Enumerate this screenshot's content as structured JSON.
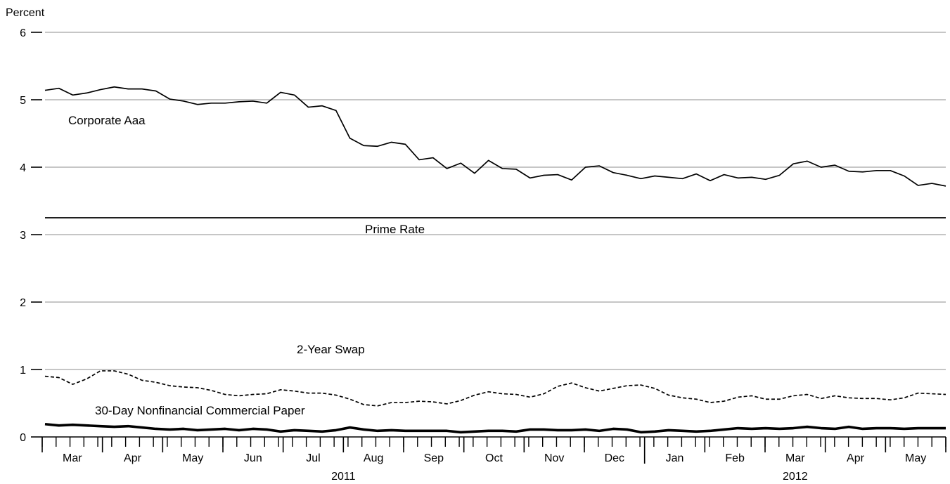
{
  "chart_data": {
    "type": "line",
    "ylabel": "Percent",
    "ylim": [
      0,
      6
    ],
    "yticks": [
      0,
      1,
      2,
      3,
      4,
      5,
      6
    ],
    "grid": true,
    "months": [
      "Mar",
      "Apr",
      "May",
      "Jun",
      "Jul",
      "Aug",
      "Sep",
      "Oct",
      "Nov",
      "Dec",
      "Jan",
      "Feb",
      "Mar",
      "Apr",
      "May"
    ],
    "years": [
      {
        "label": "2011",
        "first_month": 0,
        "last_month": 9
      },
      {
        "label": "2012",
        "first_month": 10,
        "last_month": 14
      }
    ],
    "series": [
      {
        "name": "Corporate Aaa",
        "style": "solid",
        "color": "#000000",
        "values": [
          5.14,
          5.17,
          5.07,
          5.1,
          5.15,
          5.19,
          5.16,
          5.16,
          5.13,
          5.01,
          4.98,
          4.93,
          4.95,
          4.95,
          4.97,
          4.98,
          4.95,
          5.11,
          5.07,
          4.89,
          4.91,
          4.84,
          4.43,
          4.32,
          4.31,
          4.37,
          4.34,
          4.11,
          4.14,
          3.98,
          4.06,
          3.91,
          4.1,
          3.98,
          3.97,
          3.84,
          3.88,
          3.89,
          3.81,
          4.0,
          4.02,
          3.92,
          3.88,
          3.83,
          3.87,
          3.85,
          3.83,
          3.9,
          3.8,
          3.89,
          3.84,
          3.85,
          3.82,
          3.88,
          4.05,
          4.09,
          4.0,
          4.03,
          3.94,
          3.93,
          3.95,
          3.95,
          3.87,
          3.73,
          3.76,
          3.72
        ]
      },
      {
        "name": "Prime Rate",
        "style": "solid",
        "color": "#000000",
        "values": [
          3.25,
          3.25
        ]
      },
      {
        "name": "2-Year Swap",
        "style": "dashed",
        "color": "#000000",
        "values": [
          0.9,
          0.88,
          0.78,
          0.86,
          0.98,
          0.98,
          0.93,
          0.84,
          0.81,
          0.76,
          0.74,
          0.73,
          0.69,
          0.63,
          0.61,
          0.63,
          0.64,
          0.7,
          0.68,
          0.65,
          0.65,
          0.62,
          0.56,
          0.48,
          0.46,
          0.51,
          0.51,
          0.53,
          0.52,
          0.49,
          0.54,
          0.62,
          0.67,
          0.64,
          0.63,
          0.59,
          0.64,
          0.75,
          0.8,
          0.73,
          0.68,
          0.72,
          0.76,
          0.77,
          0.72,
          0.62,
          0.58,
          0.56,
          0.51,
          0.53,
          0.59,
          0.61,
          0.56,
          0.56,
          0.61,
          0.63,
          0.57,
          0.61,
          0.58,
          0.57,
          0.57,
          0.55,
          0.58,
          0.65,
          0.64,
          0.63
        ]
      },
      {
        "name": "30-Day Nonfinancial Commercial Paper",
        "style": "bold",
        "color": "#000000",
        "values": [
          0.19,
          0.17,
          0.18,
          0.17,
          0.16,
          0.15,
          0.16,
          0.14,
          0.12,
          0.11,
          0.12,
          0.1,
          0.11,
          0.12,
          0.1,
          0.12,
          0.11,
          0.08,
          0.1,
          0.09,
          0.08,
          0.1,
          0.14,
          0.11,
          0.09,
          0.1,
          0.09,
          0.09,
          0.09,
          0.09,
          0.07,
          0.08,
          0.09,
          0.09,
          0.08,
          0.11,
          0.11,
          0.1,
          0.1,
          0.11,
          0.09,
          0.12,
          0.11,
          0.07,
          0.08,
          0.1,
          0.09,
          0.08,
          0.09,
          0.11,
          0.13,
          0.12,
          0.13,
          0.12,
          0.13,
          0.15,
          0.13,
          0.12,
          0.15,
          0.12,
          0.13,
          0.13,
          0.12,
          0.13,
          0.13,
          0.13
        ]
      }
    ]
  }
}
